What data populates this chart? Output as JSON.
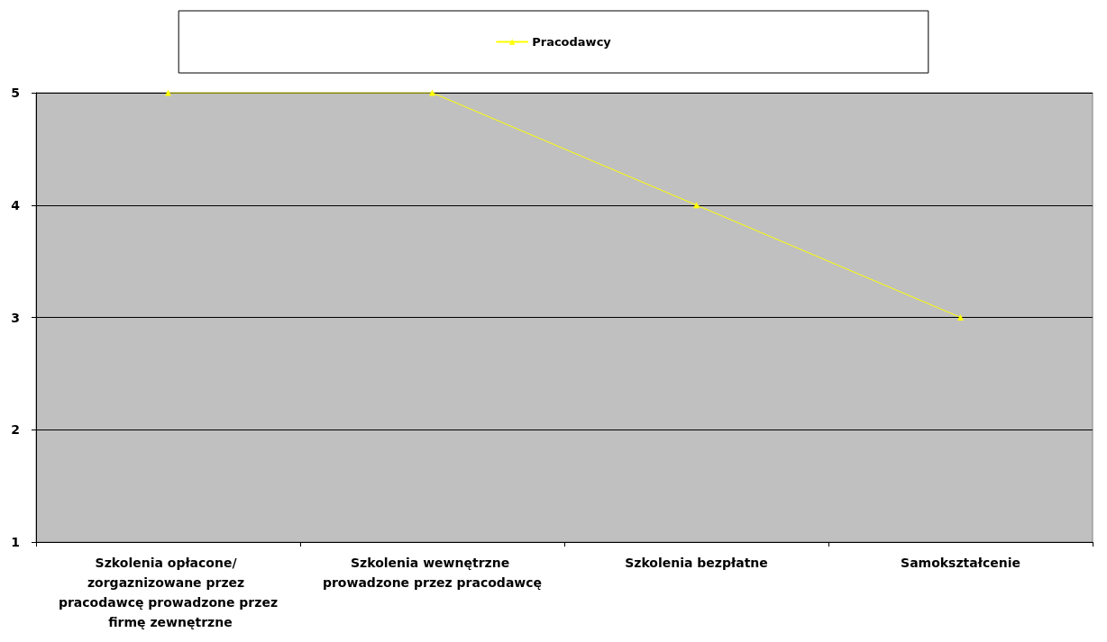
{
  "chart_data": {
    "type": "line",
    "categories": [
      "Szkolenia opłacone/ zorgaznizowane przez pracodawcę prowadzone przez firmę zewnętrzne",
      "Szkolenia wewnętrzne prowadzone przez pracodawcę",
      "Szkolenia bezpłatne",
      "Samokształcenie"
    ],
    "series": [
      {
        "name": "Pracodawcy",
        "color": "#ffff00",
        "values": [
          5,
          5,
          4,
          3
        ]
      }
    ],
    "ylim": [
      1,
      5
    ],
    "yticks": [
      1,
      2,
      3,
      4,
      5
    ],
    "grid": "y",
    "legend": "top",
    "marker": "triangle",
    "line_style": "solid"
  }
}
